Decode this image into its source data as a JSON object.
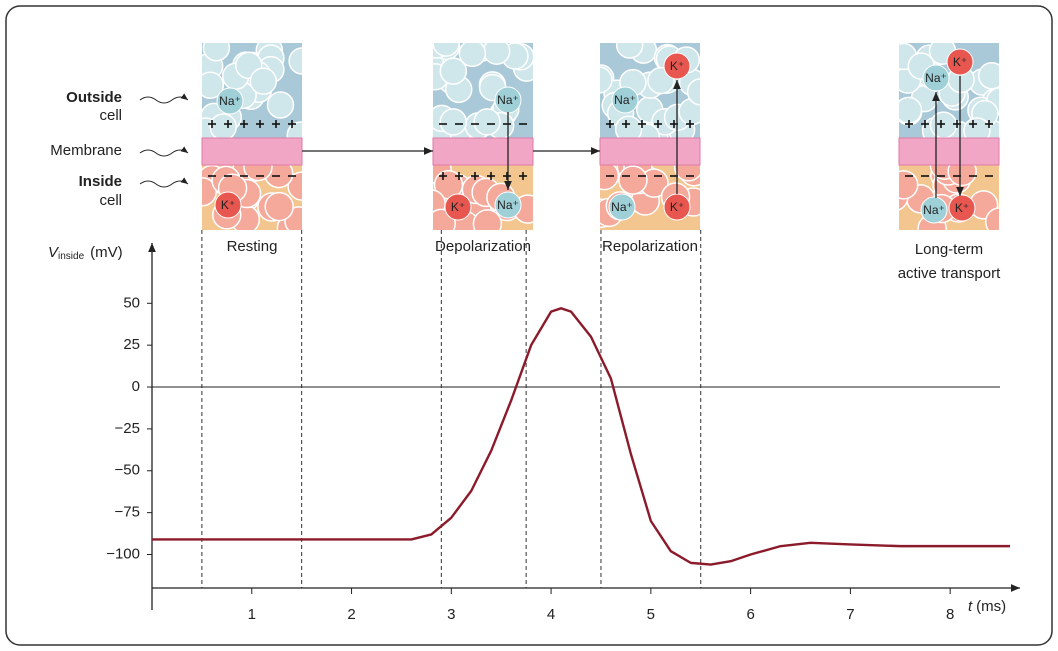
{
  "chart_data": {
    "type": "line",
    "ylabel": {
      "symbol": "V",
      "subscript": "inside",
      "unit": "(mV)"
    },
    "xlabel": {
      "symbol": "t",
      "unit": "(ms)"
    },
    "side_labels": [
      {
        "bold": "Outside",
        "text": "cell"
      },
      {
        "text": "Membrane"
      },
      {
        "bold": "Inside",
        "text": "cell"
      }
    ],
    "x": [
      0,
      1,
      2,
      2.6,
      2.8,
      3,
      3.2,
      3.4,
      3.6,
      3.8,
      4.0,
      4.1,
      4.2,
      4.4,
      4.6,
      4.8,
      5.0,
      5.2,
      5.4,
      5.6,
      5.8,
      6.0,
      6.3,
      6.6,
      7.0,
      7.5,
      8.0,
      8.6
    ],
    "series": [
      {
        "color": "#8b1a2a",
        "values": [
          -91,
          -91,
          -91,
          -91,
          -88,
          -78,
          -62,
          -38,
          -8,
          25,
          45,
          47,
          45,
          30,
          5,
          -40,
          -80,
          -98,
          -105,
          -106,
          -104,
          -100,
          -95,
          -93,
          -94,
          -95,
          -95,
          -95
        ]
      }
    ],
    "xlim": [
      0,
      8.7
    ],
    "ylim": [
      -120,
      86
    ],
    "xticks": [
      1,
      2,
      3,
      4,
      5,
      6,
      7,
      8
    ],
    "yticks": [
      50,
      25,
      0,
      {
        "value": -25,
        "label": "−25"
      },
      {
        "value": -50,
        "label": "−50"
      },
      {
        "value": -75,
        "label": "−75"
      },
      {
        "value": -100,
        "label": "−100"
      }
    ],
    "phases": [
      {
        "label": "Resting",
        "start": 0.5,
        "end": 1.5,
        "ions": [
          "Na⁺",
          "K⁺"
        ]
      },
      {
        "label": "Depolarization",
        "start": 2.9,
        "end": 3.75,
        "ions": [
          "Na⁺",
          "K⁺",
          "Na⁺"
        ]
      },
      {
        "label": "Repolarization",
        "start": 4.5,
        "end": 5.5,
        "ions": [
          "K⁺",
          "Na⁺",
          "Na⁺",
          "K⁺"
        ]
      },
      {
        "label": [
          "Long-term",
          "active transport"
        ],
        "ions": [
          "K⁺",
          "Na⁺",
          "Na⁺",
          "K⁺"
        ]
      }
    ]
  }
}
